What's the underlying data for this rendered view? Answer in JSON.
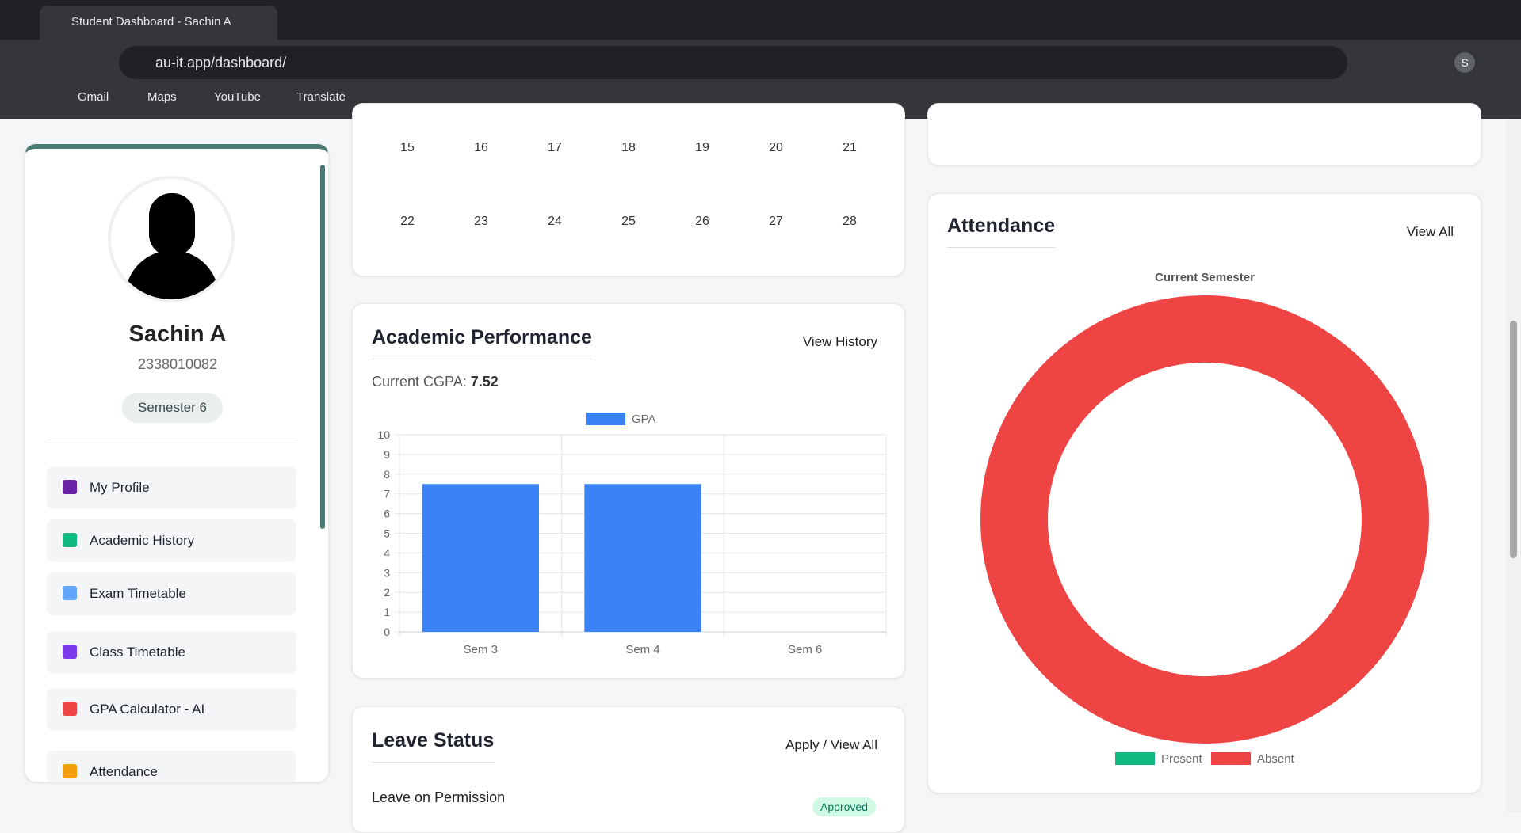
{
  "browser": {
    "tab_title": "Student Dashboard - Sachin A",
    "url": "au-it.app/dashboard/",
    "bookmarks": [
      "Gmail",
      "Maps",
      "YouTube",
      "Translate"
    ],
    "profile_initial": "S"
  },
  "calendar": {
    "weeks": [
      [
        15,
        16,
        17,
        18,
        19,
        20,
        21
      ],
      [
        22,
        23,
        24,
        25,
        26,
        27,
        28
      ]
    ]
  },
  "profile": {
    "name": "Sachin A",
    "id": "2338010082",
    "semester": "Semester 6"
  },
  "nav": [
    "My Profile",
    "Academic History",
    "Exam Timetable",
    "Class Timetable",
    "GPA Calculator - AI",
    "Attendance"
  ],
  "academic": {
    "title": "Academic Performance",
    "link": "View History",
    "cgpa_label": "Current CGPA:",
    "cgpa": 7.52,
    "chart": {
      "type": "bar",
      "categories": [
        "Sem 3",
        "Sem 4",
        "Sem 6"
      ],
      "series": [
        {
          "name": "GPA",
          "color": "#3b82f6",
          "values": [
            7.5,
            7.5,
            null
          ]
        }
      ],
      "ylim": [
        0,
        10
      ],
      "yticks": [
        0,
        1,
        2,
        3,
        4,
        5,
        6,
        7,
        8,
        9,
        10
      ],
      "grid": true
    }
  },
  "attendance": {
    "title": "Attendance",
    "link": "View All",
    "chart": {
      "type": "doughnut",
      "title": "Current Semester",
      "categories": [
        "Present",
        "Absent"
      ],
      "values": [
        0,
        100
      ],
      "colors": [
        "#10b981",
        "#ef4444"
      ]
    }
  },
  "leave": {
    "title": "Leave Status",
    "link": "Apply / View All",
    "item": "Leave on Permission",
    "status": "Approved"
  }
}
